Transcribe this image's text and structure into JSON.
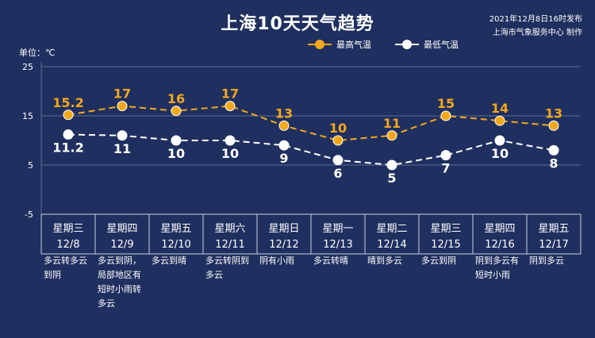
{
  "header": {
    "title": "上海10天天气趋势",
    "publish_time": "2021年12月8日16时发布",
    "publisher": "上海市气象服务中心 制作",
    "unit_label": "单位：℃"
  },
  "colors": {
    "background": "#1f2f5f",
    "high": "#f2a81d",
    "low": "#ffffff",
    "grid": "#5d6b93"
  },
  "chart_data": {
    "type": "line",
    "ylim": [
      -5,
      25
    ],
    "yticks": [
      "-5",
      "5",
      "15",
      "25"
    ],
    "categories": [
      {
        "weekday": "星期三",
        "date": "12/8",
        "desc": "多云转多云到阴"
      },
      {
        "weekday": "星期四",
        "date": "12/9",
        "desc": "多云到阴，局部地区有短时小雨转多云"
      },
      {
        "weekday": "星期五",
        "date": "12/10",
        "desc": "多云到晴"
      },
      {
        "weekday": "星期六",
        "date": "12/11",
        "desc": "多云转阴到多云"
      },
      {
        "weekday": "星期日",
        "date": "12/12",
        "desc": "阴有小雨"
      },
      {
        "weekday": "星期一",
        "date": "12/13",
        "desc": "多云转晴"
      },
      {
        "weekday": "星期二",
        "date": "12/14",
        "desc": "晴到多云"
      },
      {
        "weekday": "星期三",
        "date": "12/15",
        "desc": "多云到阴"
      },
      {
        "weekday": "星期四",
        "date": "12/16",
        "desc": "阴到多云有短时小雨"
      },
      {
        "weekday": "星期五",
        "date": "12/17",
        "desc": "阴到多云"
      }
    ],
    "series": [
      {
        "name": "最高气温",
        "values": [
          15.2,
          17,
          16,
          17,
          13,
          10,
          11,
          15,
          14,
          13
        ],
        "labels": [
          "15.2",
          "17",
          "16",
          "17",
          "13",
          "10",
          "11",
          "15",
          "14",
          "13"
        ]
      },
      {
        "name": "最低气温",
        "values": [
          11.2,
          11,
          10,
          10,
          9,
          6,
          5,
          7,
          10,
          8
        ],
        "labels": [
          "11.2",
          "11",
          "10",
          "10",
          "9",
          "6",
          "5",
          "7",
          "10",
          "8"
        ]
      }
    ],
    "grid": true,
    "legend": "top-center"
  }
}
